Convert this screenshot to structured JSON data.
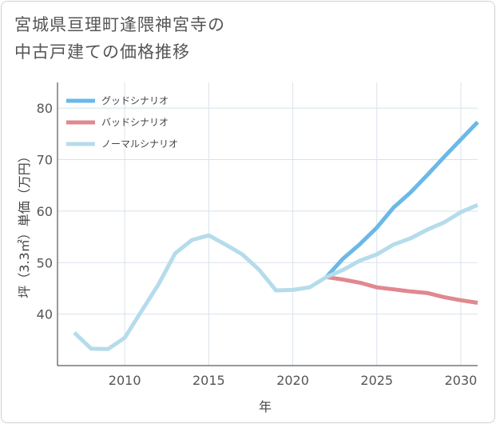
{
  "chart_data": {
    "type": "line",
    "title_lines": [
      "宮城県亘理町逢隈神宮寺の",
      "中古戸建ての価格推移"
    ],
    "xlabel": "年",
    "ylabel": "坪（3.3㎡）単価（万円）",
    "xlim": [
      2006,
      2031
    ],
    "ylim": [
      30,
      85
    ],
    "x_ticks": [
      2010,
      2015,
      2020,
      2025,
      2030
    ],
    "y_ticks": [
      40,
      50,
      60,
      70,
      80
    ],
    "grid": true,
    "legend_position": "top-left",
    "series": [
      {
        "name": "グッドシナリオ",
        "color": "#6bb8e8",
        "x": [
          2022,
          2023,
          2024,
          2025,
          2026,
          2027,
          2028,
          2029,
          2030,
          2031
        ],
        "y": [
          47.2,
          50.8,
          53.6,
          56.8,
          60.7,
          63.6,
          67.0,
          70.5,
          73.9,
          77.3
        ]
      },
      {
        "name": "バッドシナリオ",
        "color": "#e08890",
        "x": [
          2022,
          2023,
          2024,
          2025,
          2026,
          2027,
          2028,
          2029,
          2030,
          2031
        ],
        "y": [
          47.2,
          46.7,
          46.1,
          45.2,
          44.8,
          44.4,
          44.1,
          43.3,
          42.7,
          42.2
        ]
      },
      {
        "name": "ノーマルシナリオ",
        "color": "#b5dceb",
        "x": [
          2007,
          2008,
          2009,
          2010,
          2011,
          2012,
          2013,
          2014,
          2015,
          2016,
          2017,
          2018,
          2019,
          2020,
          2021,
          2022,
          2023,
          2024,
          2025,
          2026,
          2027,
          2028,
          2029,
          2030,
          2031
        ],
        "y": [
          36.4,
          33.3,
          33.2,
          35.4,
          40.6,
          45.7,
          51.8,
          54.4,
          55.3,
          53.5,
          51.6,
          48.6,
          44.6,
          44.7,
          45.2,
          47.2,
          48.6,
          50.4,
          51.6,
          53.5,
          54.7,
          56.4,
          57.8,
          59.8,
          61.2
        ]
      }
    ]
  }
}
